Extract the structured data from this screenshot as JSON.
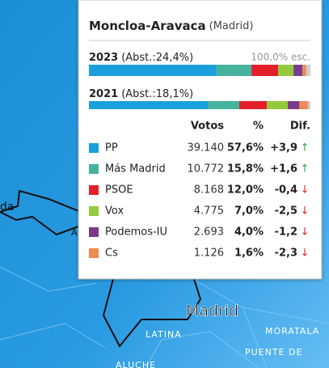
{
  "title": "Moncloa-Aravaca",
  "subtitle": "(Madrid)",
  "bars": [
    {
      "year": "2023",
      "abst": "(Abst.:24,4%)",
      "note": "100,0% esc.",
      "values": [
        57.6,
        15.8,
        12.0,
        7.0,
        4.0,
        1.6
      ]
    },
    {
      "year": "2021",
      "abst": "(Abst.:18,1%)",
      "values": [
        53.7,
        14.2,
        12.4,
        9.5,
        5.2,
        3.9
      ]
    }
  ],
  "table": {
    "columns": [
      "Votos",
      "%",
      "Dif."
    ],
    "rows": [
      {
        "party": "PP",
        "color": "#1a9fdd",
        "votes": "39.140",
        "pct": "57,6%",
        "diff": "+3,9",
        "arrow": "↑",
        "arrow_color": "#2aa84a"
      },
      {
        "party": "Más Madrid",
        "color": "#45b39d",
        "votes": "10.772",
        "pct": "15,8%",
        "diff": "+1,6",
        "arrow": "↑",
        "arrow_color": "#2aa84a"
      },
      {
        "party": "PSOE",
        "color": "#e3202a",
        "votes": "8.168",
        "pct": "12,0%",
        "diff": "-0,4",
        "arrow": "↓",
        "arrow_color": "#e3202a"
      },
      {
        "party": "Vox",
        "color": "#95c93d",
        "votes": "4.775",
        "pct": "7,0%",
        "diff": "-2,5",
        "arrow": "↓",
        "arrow_color": "#e3202a"
      },
      {
        "party": "Podemos-IU",
        "color": "#7b3b8c",
        "votes": "2.693",
        "pct": "4,0%",
        "diff": "-1,2",
        "arrow": "↓",
        "arrow_color": "#e3202a"
      },
      {
        "party": "Cs",
        "color": "#ef8a50",
        "votes": "1.126",
        "pct": "1,6%",
        "diff": "-2,3",
        "arrow": "↓",
        "arrow_color": "#e3202a"
      }
    ]
  },
  "map_labels": [
    "da",
    "A",
    "Madrid",
    "LATINA",
    "MORATALA",
    "PUENTE DE",
    "ALUCHE"
  ]
}
